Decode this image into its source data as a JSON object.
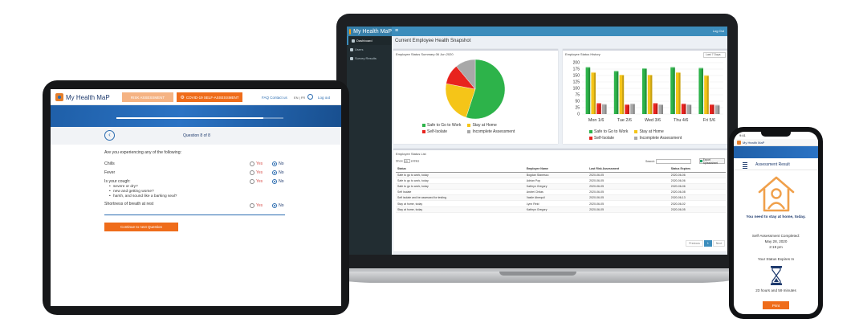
{
  "laptop": {
    "app_name": "My Health MaP",
    "logout": "Log Out",
    "sidebar": [
      {
        "label": "Dashboard",
        "active": true
      },
      {
        "label": "Users",
        "active": false
      },
      {
        "label": "Survey Results",
        "active": false
      }
    ],
    "page_title": "Current Employee Health Snapshot",
    "pie_title": "Employee Status Summary 06 Jun 2020",
    "history_title": "Employee Status History",
    "history_range": "Last 7 Days",
    "list_title": "Employee Status List",
    "show_label": "Show",
    "show_value": "10",
    "entries_label": "entries",
    "search_label": "Search:",
    "export_label": "Export Spreadsheet",
    "columns": [
      "Status",
      "Employee Name",
      "Last Risk Assessment",
      "Status Expires"
    ],
    "rows": [
      [
        "Safe to go to work, today",
        "Bogdan Stanescu",
        "2020-06-05",
        "2020-06-06"
      ],
      [
        "Safe to go to work, today",
        "Adrian Pop",
        "2020-06-05",
        "2020-06-06"
      ],
      [
        "Safe to go to work, today",
        "Kathryn Gregory",
        "2020-06-05",
        "2020-06-06"
      ],
      [
        "Self Isolate",
        "Andrei Chitas",
        "2020-06-05",
        "2020-06-08"
      ],
      [
        "Self isolate and be assessed for testing",
        "Vasile Abrequil",
        "2020-06-05",
        "2020-06-13"
      ],
      [
        "Stay at home, today",
        "Lynn Reid",
        "2020-06-05",
        "2020-06-02"
      ],
      [
        "Stay at home, today",
        "Kathryn Gregory",
        "2020-06-05",
        "2020-06-05"
      ]
    ],
    "pager": {
      "previous": "Previous",
      "current": "1",
      "next": "Next"
    }
  },
  "chart_data": [
    {
      "type": "pie",
      "title": "Employee Status Summary 06 Jun 2020",
      "series": [
        {
          "name": "Safe to Go to Work",
          "value": 55,
          "color": "#2db34a"
        },
        {
          "name": "Stay at Home",
          "value": 23,
          "color": "#f5c518"
        },
        {
          "name": "Self-Isolate",
          "value": 11,
          "color": "#e8231e"
        },
        {
          "name": "Incomplete Assessment",
          "value": 11,
          "color": "#a8a8a8"
        }
      ]
    },
    {
      "type": "bar",
      "title": "Employee Status History",
      "categories": [
        "Mon 1/6",
        "Tue 2/6",
        "Wed 3/6",
        "Thu 4/6",
        "Fri 5/6"
      ],
      "ylim": [
        0,
        200
      ],
      "yticks": [
        0,
        25,
        50,
        75,
        100,
        125,
        150,
        175,
        200
      ],
      "series": [
        {
          "name": "Safe to Go to Work",
          "color": "#2db34a",
          "values": [
            180,
            165,
            175,
            180,
            177
          ]
        },
        {
          "name": "Stay at Home",
          "color": "#f5c518",
          "values": [
            160,
            150,
            150,
            160,
            148
          ]
        },
        {
          "name": "Self-Isolate",
          "color": "#e8231e",
          "values": [
            40,
            35,
            40,
            38,
            35
          ]
        },
        {
          "name": "Incomplete Assessment",
          "color": "#a8a8a8",
          "values": [
            36,
            38,
            35,
            35,
            33
          ]
        }
      ]
    }
  ],
  "tablet": {
    "brand": "My Health MaP",
    "risk_button": "RISK ASSESSMENT",
    "covid_button": "COVID-19 SELF-ASSESSMENT",
    "links": "FAQ   Contact us",
    "lang": "EN | FR",
    "logout": "Log out",
    "progress": 0.88,
    "question_count": "Question 8 of 8",
    "prompt": "Are you experiencing any of the following:",
    "yes": "Yes",
    "no": "No",
    "symptoms": [
      "Chills",
      "Fever",
      "Is your cough:",
      "Shortness of breath at rest"
    ],
    "cough_sub": [
      "severe or dry?",
      "new and getting worse?",
      "harsh, and sound like a barking seal?"
    ],
    "continue_button": "Continue to next Question"
  },
  "phone": {
    "time": "9:41",
    "brand": "My Health MaP",
    "result_title": "Assessment Result",
    "message": "You need to stay at home, today.",
    "completed_label": "Self-Assessment Completed:",
    "completed_date": "May 28, 2020",
    "completed_time": "2:19 pm",
    "expires_label": "Your Status Expires In",
    "expires_value": "23 hours and 59 minutes",
    "print_button": "Print"
  }
}
